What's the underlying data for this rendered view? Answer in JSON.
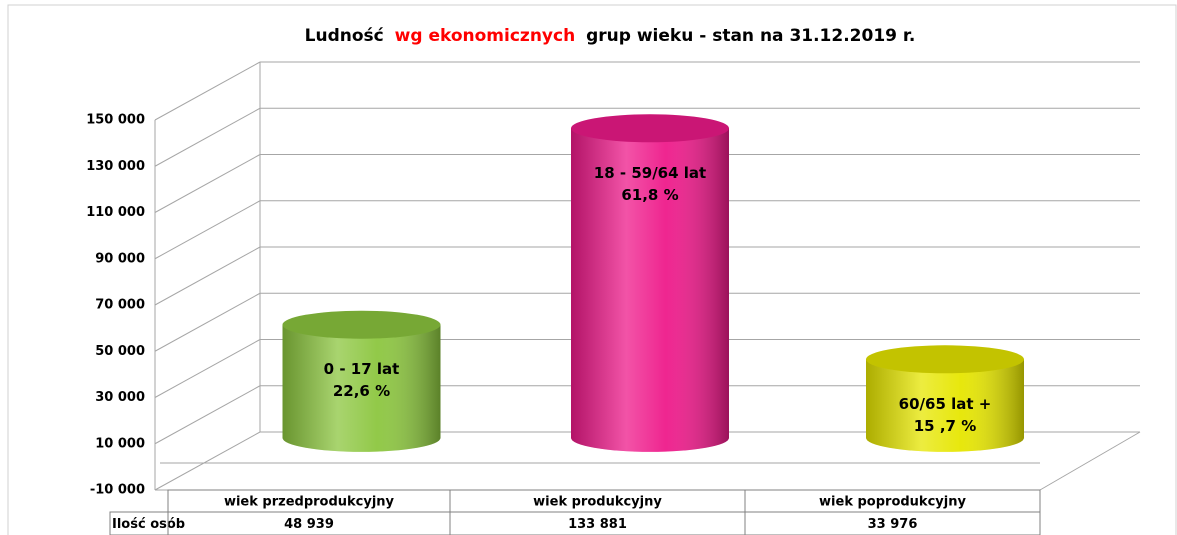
{
  "chart_data": {
    "type": "cylinder",
    "title": [
      "Ludność",
      "wg ekonomicznych",
      "grup wieku - stan na 31.12.2019 r."
    ],
    "title_highlight_color": "#ff0000",
    "categories": [
      "wiek przedprodukcyjny",
      "wiek produkcyjny",
      "wiek poprodukcyjny"
    ],
    "values": [
      48939,
      133881,
      33976
    ],
    "value_labels": [
      "48 939",
      "133 881",
      "33 976"
    ],
    "table_row_label": "Ilość osób",
    "colors": [
      "#8cc63f",
      "#ee1a8a",
      "#e6e600"
    ],
    "annotations": [
      [
        "0 - 17 lat",
        "22,6 %"
      ],
      [
        "18 - 59/64 lat",
        "61,8 %"
      ],
      [
        "60/65 lat +",
        "15 ,7 %"
      ]
    ],
    "ylim": [
      -10000,
      150000
    ],
    "yticks": [
      {
        "value": -10000,
        "label": "-10 000"
      },
      {
        "value": 10000,
        "label": "10 000"
      },
      {
        "value": 30000,
        "label": "30 000"
      },
      {
        "value": 50000,
        "label": "50 000"
      },
      {
        "value": 70000,
        "label": "70 000"
      },
      {
        "value": 90000,
        "label": "90 000"
      },
      {
        "value": 110000,
        "label": "110 000"
      },
      {
        "value": 130000,
        "label": "130 000"
      },
      {
        "value": 150000,
        "label": "150 000"
      }
    ],
    "grid": true
  }
}
